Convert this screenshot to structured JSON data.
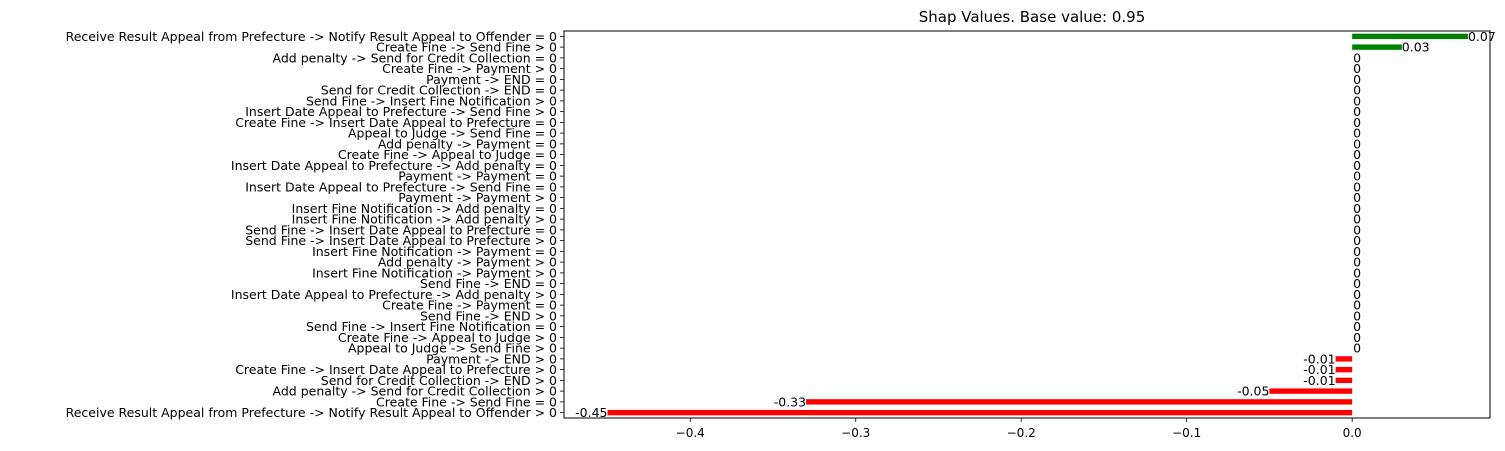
{
  "chart_data": {
    "type": "bar",
    "orientation": "horizontal",
    "title": "Shap Values. Base value: 0.95",
    "xlabel": "",
    "ylabel": "",
    "xlim": [
      -0.4763,
      0.0833
    ],
    "xticks": [
      -0.4,
      -0.3,
      -0.2,
      -0.1,
      0.0
    ],
    "xtick_labels": [
      "−0.4",
      "−0.3",
      "−0.2",
      "−0.1",
      "0.0"
    ],
    "positive_color": "#008000",
    "negative_color": "#ff0000",
    "grid": false,
    "legend": "none",
    "bars": [
      {
        "label": "Receive Result Appeal from Prefecture -> Notify Result Appeal to Offender = 0",
        "value": 0.07,
        "display": "0.07"
      },
      {
        "label": "Create Fine -> Send Fine > 0",
        "value": 0.03,
        "display": "0.03"
      },
      {
        "label": "Add penalty -> Send for Credit Collection = 0",
        "value": 0,
        "display": "0"
      },
      {
        "label": "Create Fine -> Payment > 0",
        "value": 0,
        "display": "0"
      },
      {
        "label": "Payment -> END = 0",
        "value": 0,
        "display": "0"
      },
      {
        "label": "Send for Credit Collection -> END = 0",
        "value": 0,
        "display": "0"
      },
      {
        "label": "Send Fine -> Insert Fine Notification > 0",
        "value": 0,
        "display": "0"
      },
      {
        "label": "Insert Date Appeal to Prefecture -> Send Fine > 0",
        "value": 0,
        "display": "0"
      },
      {
        "label": "Create Fine -> Insert Date Appeal to Prefecture = 0",
        "value": 0,
        "display": "0"
      },
      {
        "label": "Appeal to Judge -> Send Fine = 0",
        "value": 0,
        "display": "0"
      },
      {
        "label": "Add penalty -> Payment = 0",
        "value": 0,
        "display": "0"
      },
      {
        "label": "Create Fine -> Appeal to Judge = 0",
        "value": 0,
        "display": "0"
      },
      {
        "label": "Insert Date Appeal to Prefecture -> Add penalty = 0",
        "value": 0,
        "display": "0"
      },
      {
        "label": "Payment -> Payment = 0",
        "value": 0,
        "display": "0"
      },
      {
        "label": "Insert Date Appeal to Prefecture -> Send Fine = 0",
        "value": 0,
        "display": "0"
      },
      {
        "label": "Payment -> Payment > 0",
        "value": 0,
        "display": "0"
      },
      {
        "label": "Insert Fine Notification -> Add penalty = 0",
        "value": 0,
        "display": "0"
      },
      {
        "label": "Insert Fine Notification -> Add penalty > 0",
        "value": 0,
        "display": "0"
      },
      {
        "label": "Send Fine -> Insert Date Appeal to Prefecture = 0",
        "value": 0,
        "display": "0"
      },
      {
        "label": "Send Fine -> Insert Date Appeal to Prefecture > 0",
        "value": 0,
        "display": "0"
      },
      {
        "label": "Insert Fine Notification -> Payment = 0",
        "value": 0,
        "display": "0"
      },
      {
        "label": "Add penalty -> Payment > 0",
        "value": 0,
        "display": "0"
      },
      {
        "label": "Insert Fine Notification -> Payment > 0",
        "value": 0,
        "display": "0"
      },
      {
        "label": "Send Fine -> END = 0",
        "value": 0,
        "display": "0"
      },
      {
        "label": "Insert Date Appeal to Prefecture -> Add penalty > 0",
        "value": 0,
        "display": "0"
      },
      {
        "label": "Create Fine -> Payment = 0",
        "value": 0,
        "display": "0"
      },
      {
        "label": "Send Fine -> END > 0",
        "value": 0,
        "display": "0"
      },
      {
        "label": "Send Fine -> Insert Fine Notification = 0",
        "value": 0,
        "display": "0"
      },
      {
        "label": "Create Fine -> Appeal to Judge > 0",
        "value": 0,
        "display": "0"
      },
      {
        "label": "Appeal to Judge -> Send Fine > 0",
        "value": 0,
        "display": "0"
      },
      {
        "label": "Payment -> END > 0",
        "value": -0.01,
        "display": "-0.01"
      },
      {
        "label": "Create Fine -> Insert Date Appeal to Prefecture > 0",
        "value": -0.01,
        "display": "-0.01"
      },
      {
        "label": "Send for Credit Collection -> END > 0",
        "value": -0.01,
        "display": "-0.01"
      },
      {
        "label": "Add penalty -> Send for Credit Collection > 0",
        "value": -0.05,
        "display": "-0.05"
      },
      {
        "label": "Create Fine -> Send Fine = 0",
        "value": -0.33,
        "display": "-0.33"
      },
      {
        "label": "Receive Result Appeal from Prefecture -> Notify Result Appeal to Offender > 0",
        "value": -0.45,
        "display": "-0.45"
      }
    ]
  }
}
